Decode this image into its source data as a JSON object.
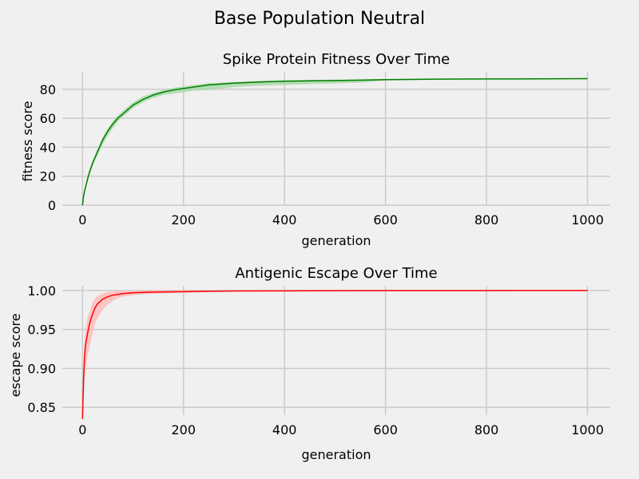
{
  "suptitle": "Base Population Neutral",
  "colors": {
    "background": "#f0f0f0",
    "grid": "#cbcbcb",
    "fitness_line": "#008000",
    "fitness_band": "#a9d8a9",
    "escape_line": "#ff0000",
    "escape_band": "#ffbcbc"
  },
  "chart_data": [
    {
      "type": "line",
      "title": "Spike Protein Fitness Over Time",
      "xlabel": "generation",
      "ylabel": "fitness score",
      "xlim": [
        -40,
        1045
      ],
      "ylim": [
        0,
        92
      ],
      "grid": true,
      "xticks": [
        0,
        200,
        400,
        600,
        800,
        1000
      ],
      "yticks": [
        0,
        20,
        40,
        60,
        80
      ],
      "series": [
        {
          "x": [
            0,
            2,
            5,
            10,
            15,
            20,
            30,
            40,
            50,
            60,
            70,
            80,
            90,
            100,
            120,
            140,
            160,
            180,
            200,
            220,
            250,
            300,
            350,
            400,
            450,
            500,
            550,
            600,
            650,
            700,
            800,
            900,
            1000
          ],
          "y": [
            0,
            6,
            11,
            18,
            24,
            29,
            37,
            45,
            51,
            56,
            60,
            63,
            66,
            69,
            73,
            76,
            78,
            79.5,
            80.5,
            81.5,
            83,
            84.2,
            85,
            85.5,
            85.8,
            86,
            86.3,
            86.6,
            86.8,
            87,
            87.1,
            87.2,
            87.3
          ],
          "lower": [
            0,
            5,
            10,
            16,
            22,
            27,
            35,
            42,
            48,
            53,
            58,
            61,
            64,
            67,
            71,
            74,
            76,
            77,
            78,
            79,
            79.5,
            81.5,
            82.5,
            83,
            83.5,
            84,
            84.5,
            86,
            86.3,
            86.8,
            86.9,
            87,
            87.1
          ],
          "upper": [
            1,
            7,
            12,
            20,
            26,
            31,
            39,
            47,
            53,
            58,
            62,
            65,
            68,
            71,
            75,
            77.5,
            79.5,
            81,
            82,
            83,
            84.2,
            85,
            85.8,
            86.2,
            86.4,
            86.6,
            86.8,
            87,
            87.1,
            87.2,
            87.3,
            87.4,
            87.5
          ]
        }
      ]
    },
    {
      "type": "line",
      "title": "Antigenic Escape Over Time",
      "xlabel": "generation",
      "ylabel": "escape score",
      "xlim": [
        -40,
        1045
      ],
      "ylim": [
        0.84,
        1.006
      ],
      "grid": true,
      "xticks": [
        0,
        200,
        400,
        600,
        800,
        1000
      ],
      "yticks": [
        0.85,
        0.9,
        0.95,
        1.0
      ],
      "ytick_labels": [
        "0.85",
        "0.90",
        "0.95",
        "1.00"
      ],
      "series": [
        {
          "x": [
            0,
            2,
            4,
            6,
            10,
            15,
            20,
            25,
            30,
            40,
            50,
            60,
            70,
            80,
            100,
            120,
            150,
            200,
            250,
            300,
            400,
            500,
            600,
            800,
            1000
          ],
          "y": [
            0.835,
            0.885,
            0.915,
            0.93,
            0.945,
            0.96,
            0.97,
            0.978,
            0.983,
            0.989,
            0.992,
            0.994,
            0.995,
            0.996,
            0.997,
            0.9975,
            0.998,
            0.9985,
            0.999,
            0.9993,
            0.9995,
            0.9997,
            0.9998,
            0.9999,
            1.0
          ],
          "lower": [
            0.835,
            0.86,
            0.88,
            0.9,
            0.915,
            0.93,
            0.945,
            0.958,
            0.965,
            0.975,
            0.982,
            0.987,
            0.99,
            0.992,
            0.994,
            0.995,
            0.996,
            0.997,
            0.998,
            0.999,
            0.9993,
            0.9995,
            0.9997,
            0.9998,
            0.9999
          ],
          "upper": [
            0.84,
            0.905,
            0.935,
            0.95,
            0.965,
            0.975,
            0.985,
            0.99,
            0.993,
            0.996,
            0.998,
            0.999,
            0.9995,
            0.9997,
            0.9999,
            1.0,
            1.0,
            1.0,
            1.0,
            1.0,
            1.0,
            1.0,
            1.0,
            1.0,
            1.0
          ]
        }
      ]
    }
  ]
}
